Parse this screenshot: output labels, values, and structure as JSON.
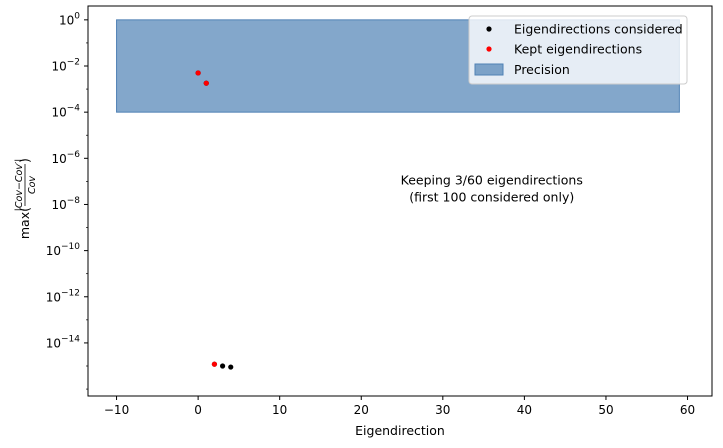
{
  "chart_data": {
    "type": "scatter",
    "xlabel": "Eigendirection",
    "ylabel": "max(|Cov - Cov'| / Cov)",
    "ylabel_parts": {
      "prefix": "max(",
      "num": "|Cov−Cov′|",
      "den": "Cov",
      "suffix": ")"
    },
    "xlim": [
      -13.5,
      63
    ],
    "ylim_log10": [
      -16.3,
      0.6
    ],
    "y_scale": "log",
    "x_ticks": [
      -10,
      0,
      10,
      20,
      30,
      40,
      50,
      60
    ],
    "x_tick_labels": [
      "−10",
      "0",
      "10",
      "20",
      "30",
      "40",
      "50",
      "60"
    ],
    "y_ticks_log10": [
      0,
      -2,
      -4,
      -6,
      -8,
      -10,
      -12,
      -14
    ],
    "y_tick_mantissa": "10",
    "y_tick_exponents": [
      "0",
      "−2",
      "−4",
      "−6",
      "−8",
      "−10",
      "−12",
      "−14"
    ],
    "grid": false,
    "legend_placement": "top-right",
    "precision_band": {
      "x_range": [
        -10,
        59
      ],
      "y_range": [
        0.0001,
        1
      ],
      "color": "#4f81b5"
    },
    "series": [
      {
        "name": "Eigendirections considered",
        "color": "#000000",
        "points": [
          {
            "x": 0,
            "y": 0.005
          },
          {
            "x": 1,
            "y": 0.0018
          },
          {
            "x": 2,
            "y": 1.2e-15
          },
          {
            "x": 3,
            "y": 1e-15
          },
          {
            "x": 4,
            "y": 9e-16
          }
        ]
      },
      {
        "name": "Kept eigendirections",
        "color": "#ff0000",
        "points": [
          {
            "x": 0,
            "y": 0.005
          },
          {
            "x": 1,
            "y": 0.0018
          },
          {
            "x": 2,
            "y": 1.2e-15
          }
        ]
      }
    ],
    "band_label": "Precision",
    "annotation": {
      "lines": [
        "Keeping 3/60 eigendirections",
        "(first 100 considered only)"
      ],
      "color": "#ff0000",
      "x": 36,
      "y_log10": -7.3
    }
  }
}
